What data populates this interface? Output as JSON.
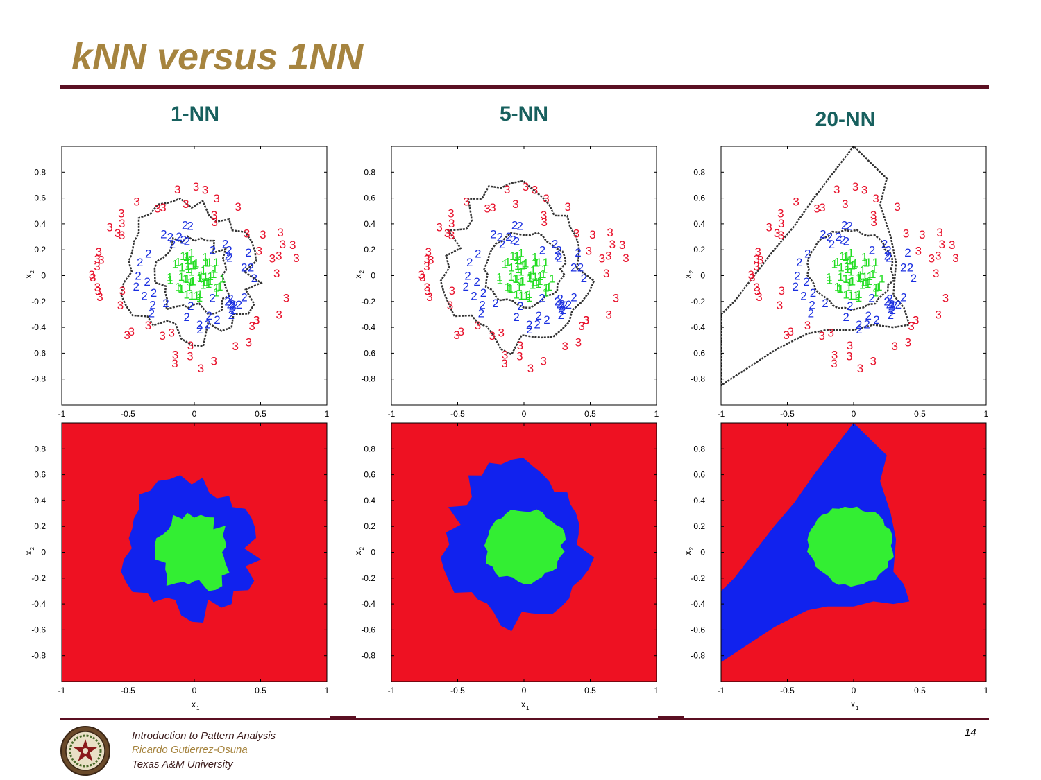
{
  "slide": {
    "title": "kNN versus 1NN",
    "page_number": "14",
    "footer": {
      "line1": "Introduction to Pattern Analysis",
      "line2": "Ricardo Gutierrez-Osuna",
      "line3": "Texas A&M University"
    }
  },
  "columns": [
    {
      "title": "1-NN"
    },
    {
      "title": "5-NN"
    },
    {
      "title": "20-NN"
    }
  ],
  "axes": {
    "x_ticks": [
      "-1",
      "-0.5",
      "0",
      "0.5",
      "1"
    ],
    "y_ticks": [
      "0.8",
      "0.6",
      "0.4",
      "0.2",
      "0",
      "-0.2",
      "-0.4",
      "-0.6",
      "-0.8"
    ],
    "xlabel": "x",
    "xlabel_sub": "1",
    "ylabel": "x",
    "ylabel_sub": "2",
    "xlim": [
      -1,
      1
    ],
    "ylim": [
      -1,
      1
    ]
  },
  "colors": {
    "title": "#a6843f",
    "rule": "#5b0f22",
    "column_title": "#17605e",
    "class1": "#22dd22",
    "class2": "#1a2fe0",
    "class3": "#e8102a",
    "region1": "#33ee33",
    "region2": "#1122ee",
    "region3": "#ee1122",
    "footer_dark": "#3a1a1a",
    "footer_gold": "#a6843f"
  },
  "chart_data": [
    {
      "type": "scatter",
      "title": "1-NN",
      "series": [
        {
          "name": "1"
        },
        {
          "name": "2"
        },
        {
          "name": "3"
        }
      ]
    },
    {
      "type": "scatter",
      "title": "5-NN",
      "series": [
        {
          "name": "1"
        },
        {
          "name": "2"
        },
        {
          "name": "3"
        }
      ]
    },
    {
      "type": "scatter",
      "title": "20-NN",
      "series": [
        {
          "name": "1"
        },
        {
          "name": "2"
        },
        {
          "name": "3"
        }
      ]
    },
    {
      "type": "heatmap",
      "title": "1-NN"
    },
    {
      "type": "heatmap",
      "title": "5-NN"
    },
    {
      "type": "heatmap",
      "title": "20-NN"
    }
  ]
}
